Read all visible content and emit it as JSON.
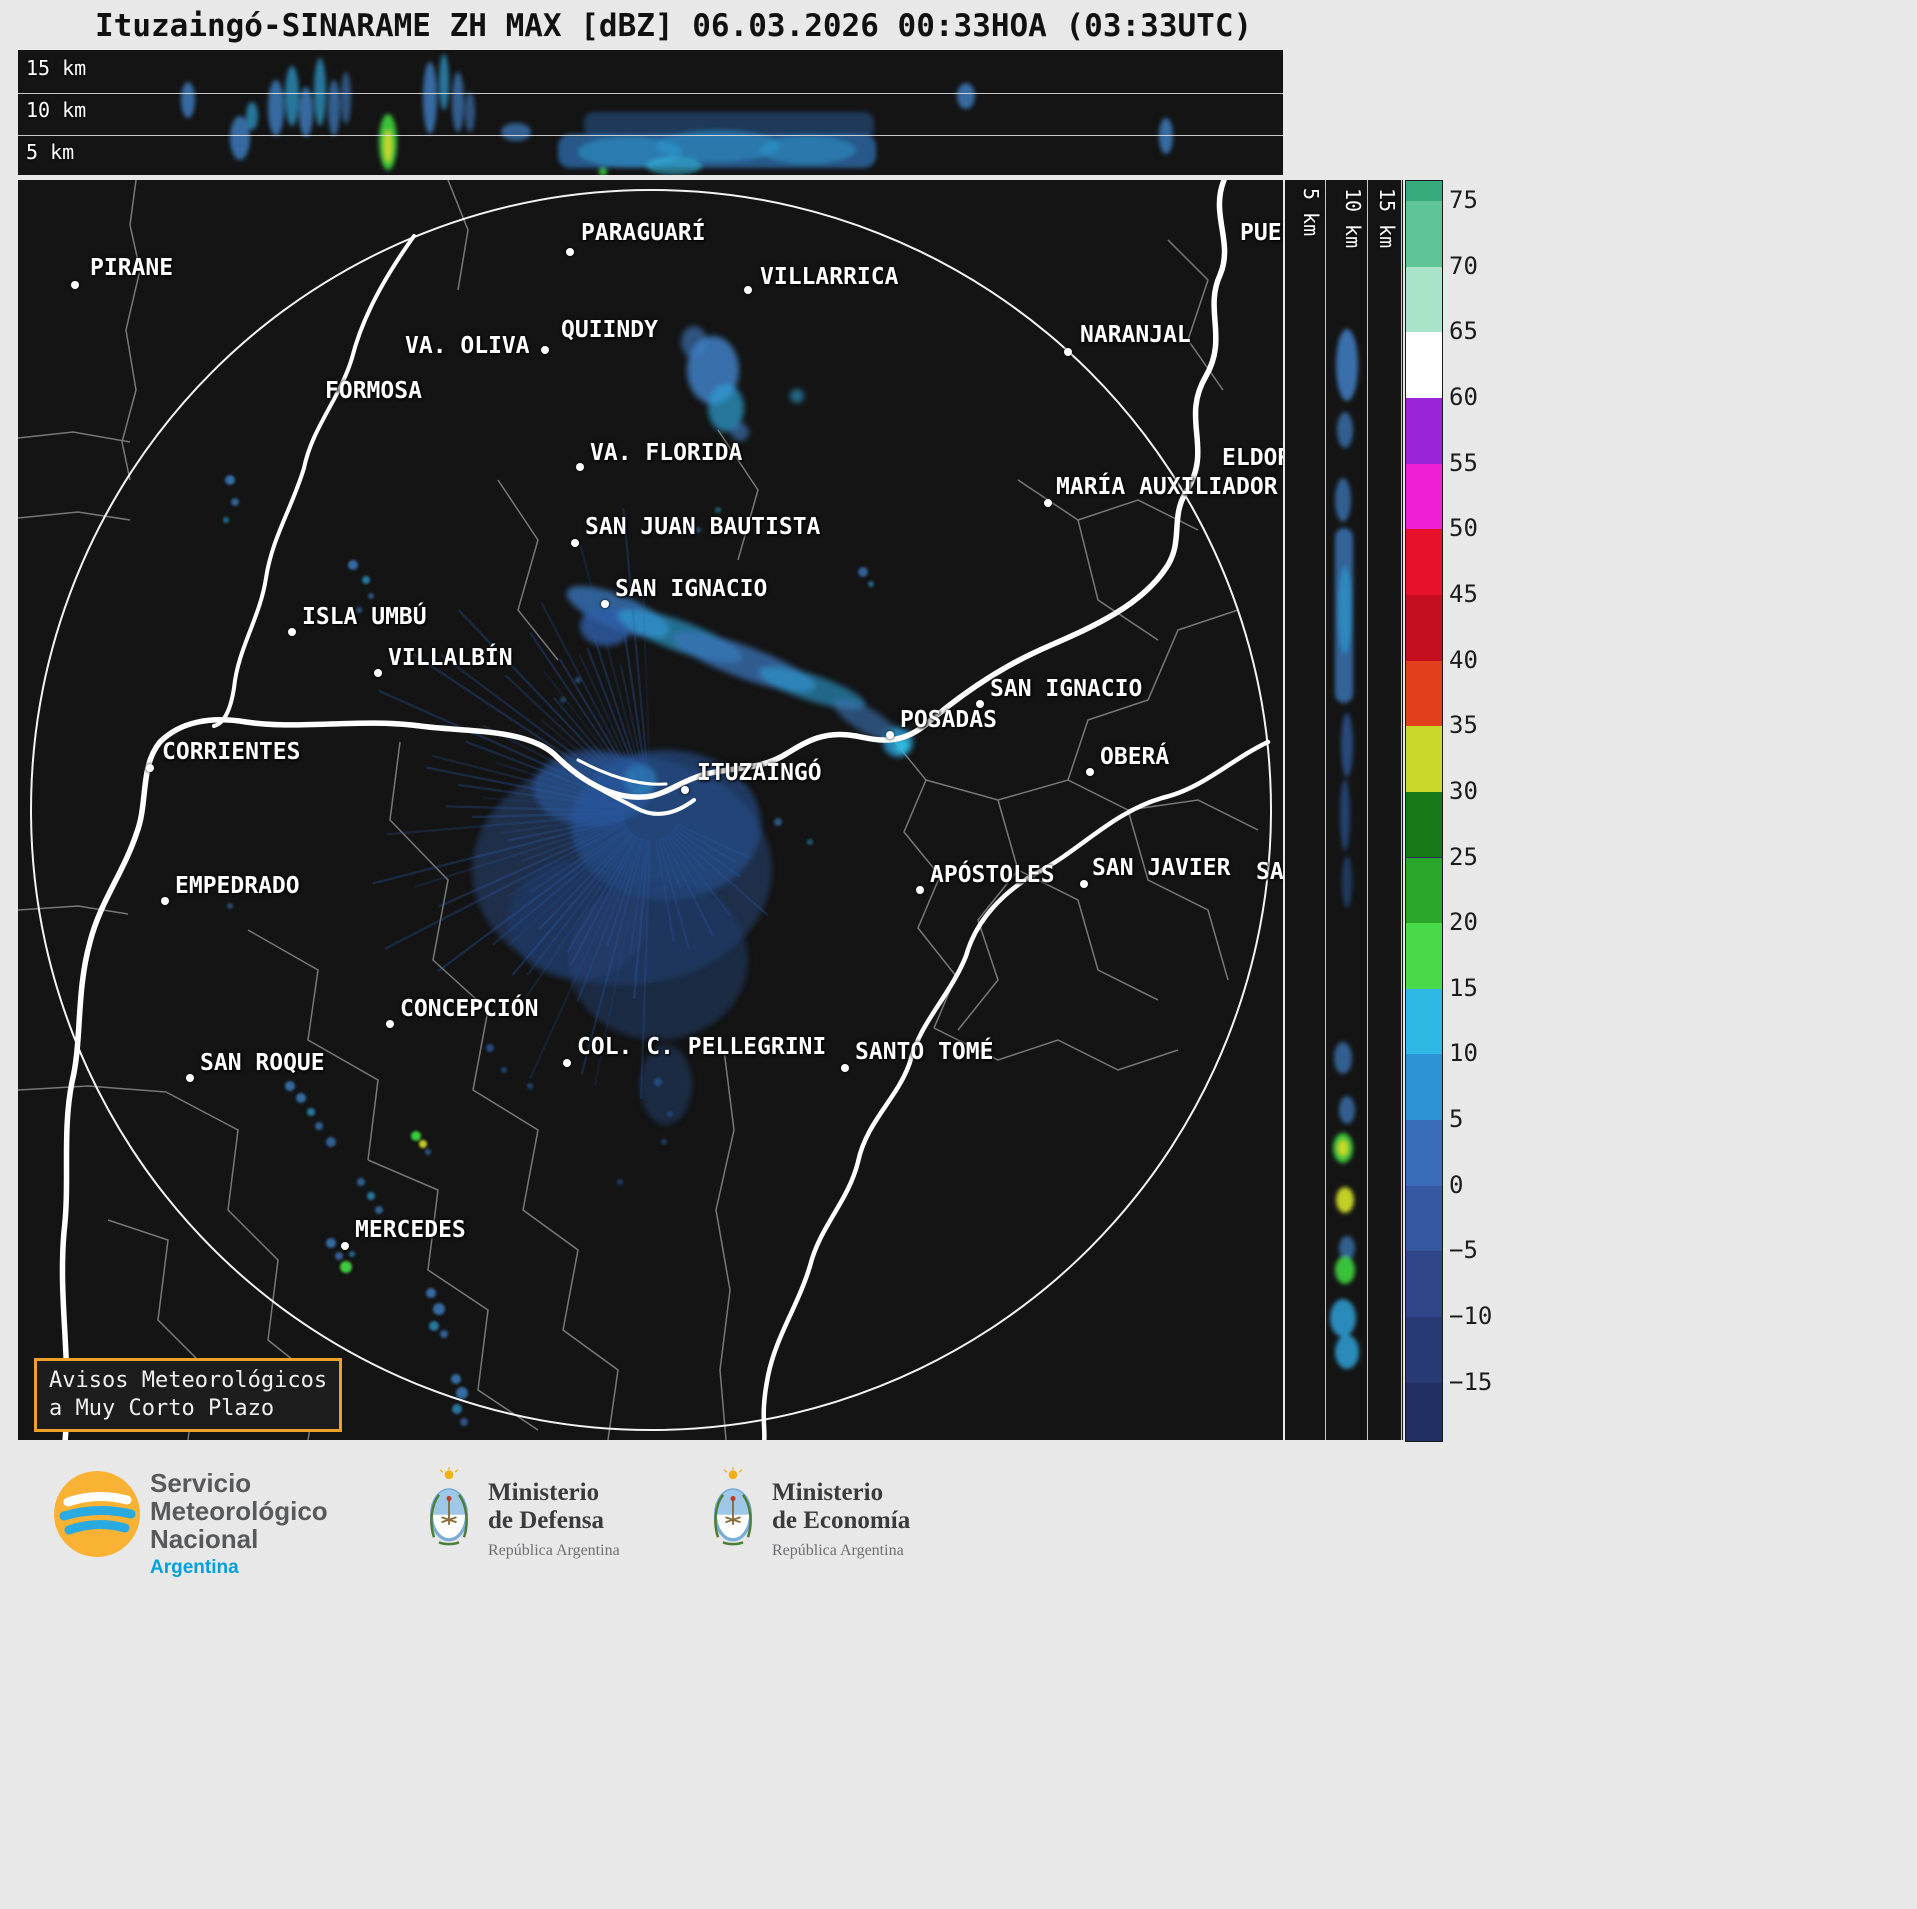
{
  "title": "Ituzaingó-SINARAME ZH MAX [dBZ] 06.03.2026 00:33HOA (03:33UTC)",
  "top_panel": {
    "height_labels": [
      "15 km",
      "10 km",
      "5 km"
    ]
  },
  "right_panel": {
    "height_labels": [
      "5 km",
      "10 km",
      "15 km"
    ]
  },
  "colorbar": {
    "tick_labels": [
      "75",
      "70",
      "65",
      "60",
      "55",
      "50",
      "45",
      "40",
      "35",
      "30",
      "25",
      "20",
      "15",
      "10",
      "5",
      "0",
      "−5",
      "−10",
      "−15"
    ],
    "colors": [
      "#37a97b",
      "#5fc496",
      "#a9e4c8",
      "#ffffff",
      "#9a25d8",
      "#ee1fd4",
      "#e8112b",
      "#c40d1f",
      "#e2401c",
      "#c9d82a",
      "#177817",
      "#2aa72a",
      "#49da49",
      "#2db8e6",
      "#2e93d2",
      "#3a6cba",
      "#35579f",
      "#2e4688",
      "#273a75",
      "#213060"
    ],
    "units": "dBZ"
  },
  "map": {
    "radar_site": "Ituzaingó",
    "badge": {
      "line1": "Avisos Meteorológicos",
      "line2": "a Muy Corto Plazo",
      "border_color": "#f2a128"
    },
    "cities": [
      {
        "name": "PIRANE",
        "label": [
          72,
          88
        ],
        "dot": [
          57,
          105
        ]
      },
      {
        "name": "PARAGUARÍ",
        "label": [
          563,
          53
        ],
        "dot": [
          552,
          72
        ]
      },
      {
        "name": "VILLARRICA",
        "label": [
          742,
          97
        ],
        "dot": [
          730,
          110
        ]
      },
      {
        "name": "QUIINDY",
        "label": [
          543,
          150
        ],
        "dot": null
      },
      {
        "name": "VA. OLIVA",
        "label": [
          387,
          166
        ],
        "dot": [
          527,
          170
        ]
      },
      {
        "name": "FORMOSA",
        "label": [
          307,
          211
        ],
        "dot": null
      },
      {
        "name": "NARANJAL",
        "label": [
          1062,
          155
        ],
        "dot": [
          1050,
          172
        ]
      },
      {
        "name": "VA. FLORIDA",
        "label": [
          572,
          273
        ],
        "dot": [
          562,
          287
        ]
      },
      {
        "name": "ELDOR",
        "label": [
          1204,
          278
        ],
        "dot": null
      },
      {
        "name": "MARÍA AUXILIADOR",
        "label": [
          1038,
          307
        ],
        "dot": [
          1030,
          323
        ]
      },
      {
        "name": "SAN JUAN BAUTISTA",
        "label": [
          567,
          347
        ],
        "dot": [
          557,
          363
        ]
      },
      {
        "name": "SAN IGNACIO",
        "label": [
          597,
          409
        ],
        "dot": [
          587,
          424
        ]
      },
      {
        "name": "ISLA UMBÚ",
        "label": [
          284,
          437
        ],
        "dot": [
          274,
          452
        ]
      },
      {
        "name": "VILLALBÍN",
        "label": [
          370,
          478
        ],
        "dot": [
          360,
          493
        ]
      },
      {
        "name": "SAN IGNACIO",
        "label": [
          972,
          509
        ],
        "dot": [
          962,
          524
        ]
      },
      {
        "name": "POSADAS",
        "label": [
          882,
          540
        ],
        "dot": [
          872,
          555
        ]
      },
      {
        "name": "CORRIENTES",
        "label": [
          144,
          572
        ],
        "dot": [
          132,
          588
        ]
      },
      {
        "name": "OBERÁ",
        "label": [
          1082,
          577
        ],
        "dot": [
          1072,
          592
        ]
      },
      {
        "name": "ITUZAINGÓ",
        "label": [
          679,
          593
        ],
        "dot": [
          667,
          610
        ]
      },
      {
        "name": "EMPEDRADO",
        "label": [
          157,
          706
        ],
        "dot": [
          147,
          721
        ]
      },
      {
        "name": "APÓSTOLES",
        "label": [
          912,
          695
        ],
        "dot": [
          902,
          710
        ]
      },
      {
        "name": "SAN JAVIER",
        "label": [
          1074,
          688
        ],
        "dot": [
          1066,
          704
        ]
      },
      {
        "name": "SAN",
        "label": [
          1238,
          692
        ],
        "dot": null
      },
      {
        "name": "PUE",
        "label": [
          1222,
          53
        ],
        "dot": null
      },
      {
        "name": "CONCEPCIÓN",
        "label": [
          382,
          829
        ],
        "dot": [
          372,
          844
        ]
      },
      {
        "name": "COL. C. PELLEGRINI",
        "label": [
          559,
          867
        ],
        "dot": [
          549,
          883
        ]
      },
      {
        "name": "SANTO TOMÉ",
        "label": [
          837,
          872
        ],
        "dot": [
          827,
          888
        ]
      },
      {
        "name": "SAN ROQUE",
        "label": [
          182,
          883
        ],
        "dot": [
          172,
          898
        ]
      },
      {
        "name": "MERCEDES",
        "label": [
          337,
          1050
        ],
        "dot": [
          327,
          1066
        ]
      }
    ]
  },
  "footer": {
    "smn": {
      "lines": [
        "Servicio",
        "Meteorológico",
        "Nacional"
      ],
      "country": "Argentina"
    },
    "defensa": {
      "line1": "Ministerio",
      "line2": "de Defensa",
      "sub": "República Argentina"
    },
    "economia": {
      "line1": "Ministerio",
      "line2": "de Economía",
      "sub": "República Argentina"
    }
  }
}
